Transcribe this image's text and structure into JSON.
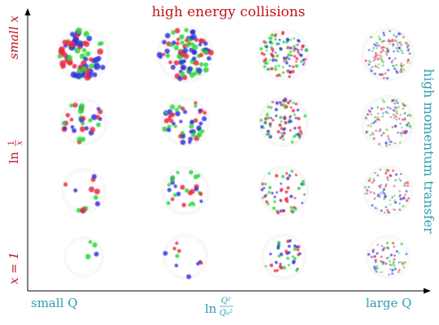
{
  "title": "high energy collisions",
  "right_label": "high momentum transfer",
  "y_axis": {
    "top_label": "small x",
    "middle_label_prefix": "ln",
    "middle_fraction_num": "1",
    "middle_fraction_den": "x",
    "bottom_label": "x = 1"
  },
  "x_axis": {
    "left_label": "small Q",
    "middle_label_prefix": "ln",
    "middle_fraction_num": "Q²",
    "middle_fraction_den": "Q₀²",
    "right_label": "large Q"
  },
  "colors": {
    "title": "#c0141c",
    "y_labels": "#c0141c",
    "right_label": "#2a9db0",
    "x_labels": "#2a9db0",
    "axis": "#000000",
    "parton_red": "#e8283c",
    "parton_green": "#2ad63a",
    "parton_blue": "#3333e0"
  },
  "grid": {
    "rows": 4,
    "cols": 4,
    "row_order": "top = small x, bottom = x = 1",
    "col_order": "left = small Q, right = large Q"
  }
}
